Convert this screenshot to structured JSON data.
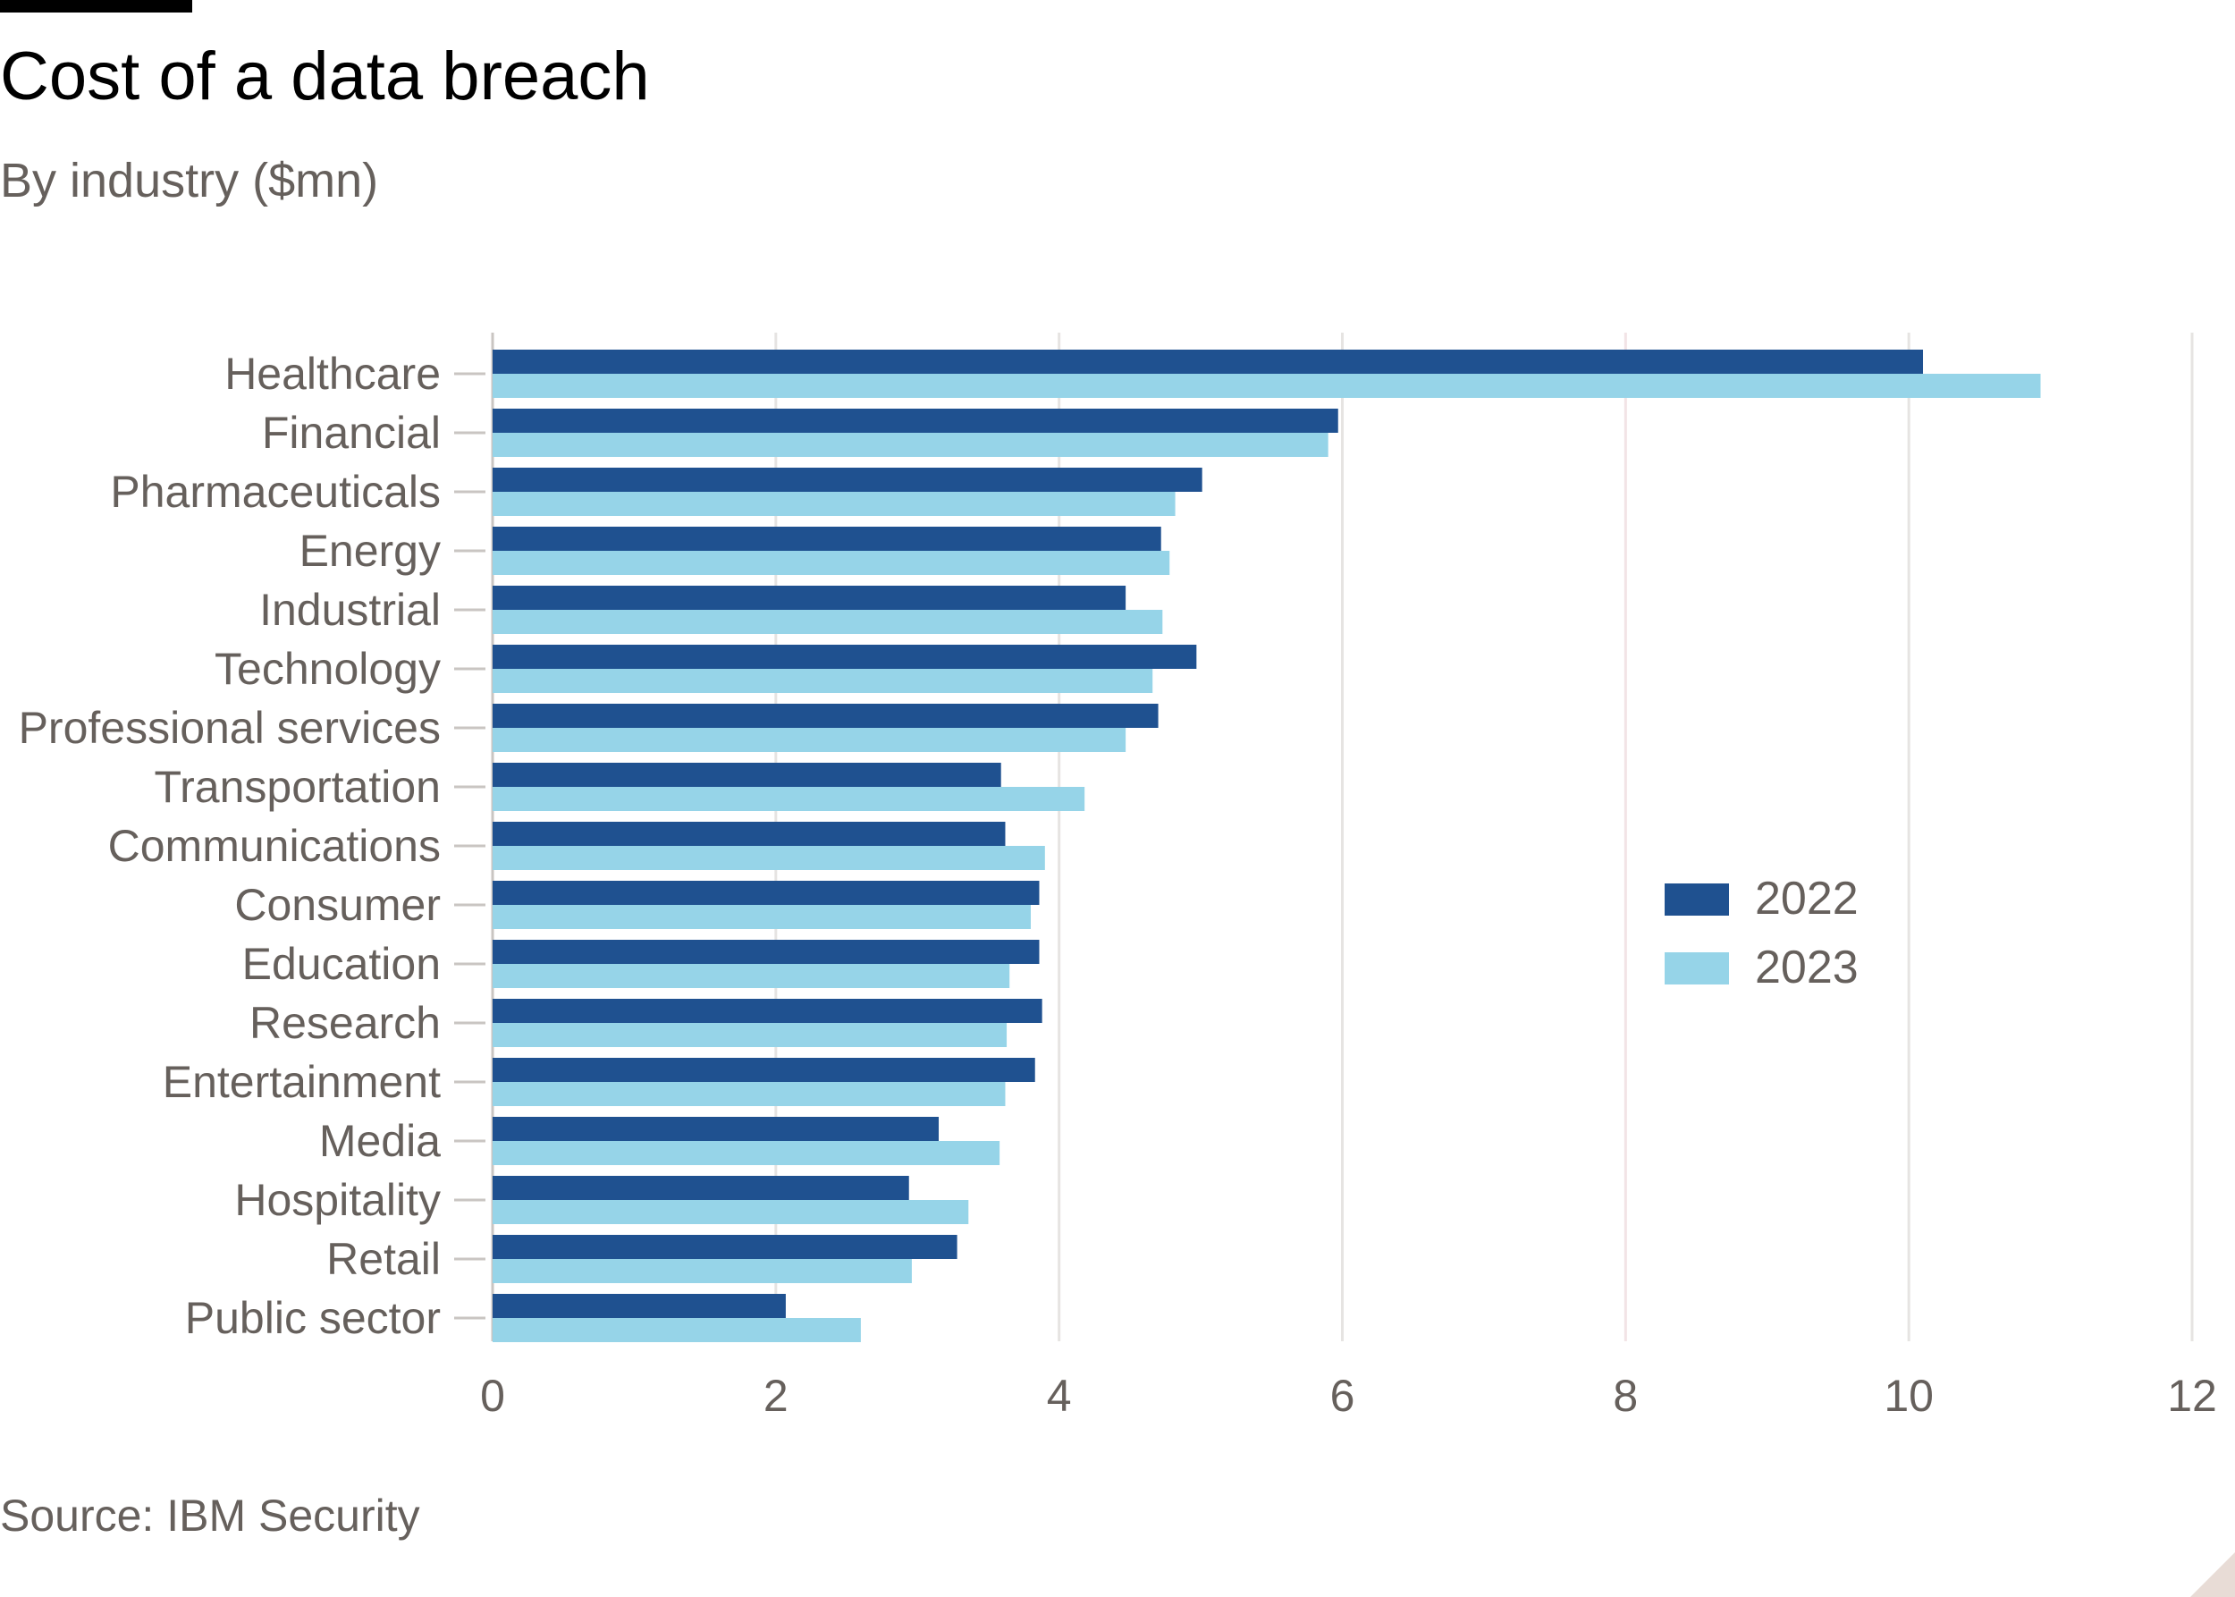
{
  "header": {
    "title": "Cost of a data breach",
    "subtitle": "By industry ($mn)"
  },
  "footer": {
    "source": "Source: IBM Security"
  },
  "colors": {
    "series_2022": "#1f5190",
    "series_2023": "#96d4e8",
    "grid": "#e6e4e2",
    "grid_highlight": "#f2e4e6",
    "axis_text": "#66605c",
    "tick": "#c9c5c2"
  },
  "chart_data": {
    "type": "bar",
    "orientation": "horizontal",
    "title": "Cost of a data breach",
    "subtitle": "By industry ($mn)",
    "xlabel": "",
    "ylabel": "",
    "xlim": [
      0,
      12
    ],
    "xticks": [
      "0",
      "2",
      "4",
      "6",
      "8",
      "10",
      "12"
    ],
    "grid": true,
    "legend_position": "right",
    "categories": [
      "Healthcare",
      "Financial",
      "Pharmaceuticals",
      "Energy",
      "Industrial",
      "Technology",
      "Professional services",
      "Transportation",
      "Communications",
      "Consumer",
      "Education",
      "Research",
      "Entertainment",
      "Media",
      "Hospitality",
      "Retail",
      "Public sector"
    ],
    "series": [
      {
        "name": "2022",
        "values": [
          10.1,
          5.97,
          5.01,
          4.72,
          4.47,
          4.97,
          4.7,
          3.59,
          3.62,
          3.86,
          3.86,
          3.88,
          3.83,
          3.15,
          2.94,
          3.28,
          2.07
        ]
      },
      {
        "name": "2023",
        "values": [
          10.93,
          5.9,
          4.82,
          4.78,
          4.73,
          4.66,
          4.47,
          4.18,
          3.9,
          3.8,
          3.65,
          3.63,
          3.62,
          3.58,
          3.36,
          2.96,
          2.6
        ]
      }
    ]
  }
}
